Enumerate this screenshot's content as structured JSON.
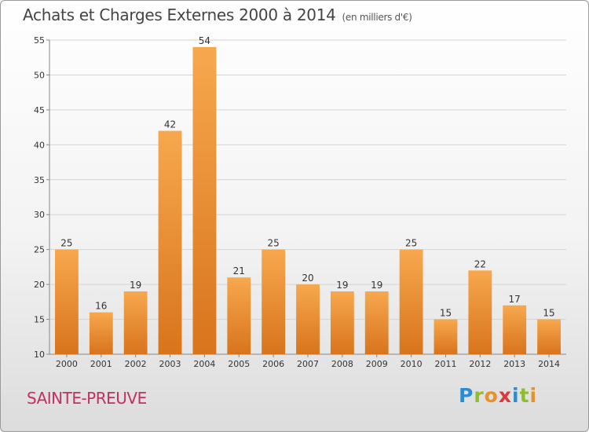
{
  "header": {
    "title": "Achats et Charges Externes 2000 à 2014",
    "unit": "(en milliers d'€)"
  },
  "footer": {
    "commune": "SAINTE-PREUVE",
    "logo": "Proxiti"
  },
  "colors": {
    "bar_top": "#f7a84e",
    "bar_bottom": "#d8741c",
    "commune_text": "#c0325f"
  },
  "chart_data": {
    "type": "bar",
    "title": "Achats et Charges Externes 2000 à 2014",
    "subtitle": "(en milliers d'€)",
    "categories": [
      "2000",
      "2001",
      "2002",
      "2003",
      "2004",
      "2005",
      "2006",
      "2007",
      "2008",
      "2009",
      "2010",
      "2011",
      "2012",
      "2013",
      "2014"
    ],
    "values": [
      25,
      16,
      19,
      42,
      54,
      21,
      25,
      20,
      19,
      19,
      25,
      15,
      22,
      17,
      15
    ],
    "ylim": [
      10,
      55
    ],
    "yticks": [
      10,
      15,
      20,
      25,
      30,
      35,
      40,
      45,
      50,
      55
    ],
    "grid": true,
    "xlabel": "",
    "ylabel": ""
  }
}
